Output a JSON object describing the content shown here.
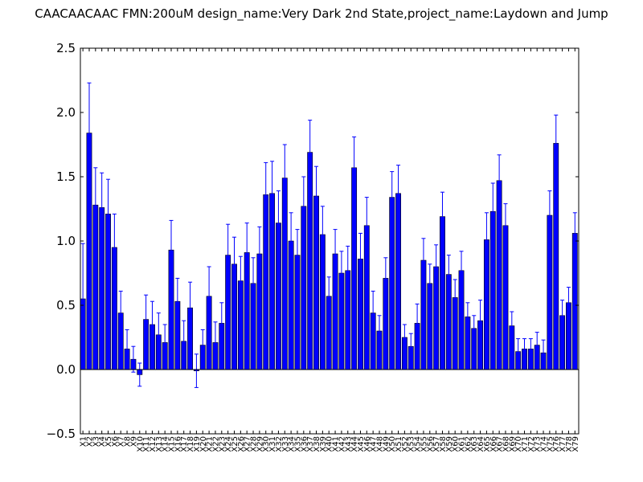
{
  "chart_data": {
    "type": "bar",
    "title": "CAACAACAAC  FMN:200uM  design_name:Very Dark 2nd State,project_name:Laydown and Jump",
    "xlabel": "",
    "ylabel": "",
    "ylim": [
      -0.5,
      2.5
    ],
    "yticks": [
      -0.5,
      0.0,
      0.5,
      1.0,
      1.5,
      2.0,
      2.5
    ],
    "ytick_labels": [
      "−0.5",
      "0.0",
      "0.5",
      "1.0",
      "1.5",
      "2.0",
      "2.5"
    ],
    "grid": false,
    "bar_color": "#0000ff",
    "error_color": "#0000ff",
    "categories": [
      "X1",
      "X2",
      "X3",
      "X4",
      "X5",
      "X6",
      "X7",
      "X8",
      "X9",
      "X10",
      "X11",
      "X12",
      "X13",
      "X14",
      "X15",
      "X16",
      "X17",
      "X18",
      "X19",
      "X20",
      "X21",
      "X22",
      "X23",
      "X24",
      "X25",
      "X26",
      "X27",
      "X28",
      "X29",
      "X30",
      "X31",
      "X32",
      "X33",
      "X34",
      "X35",
      "X36",
      "X37",
      "X38",
      "X39",
      "X40",
      "X41",
      "X42",
      "X43",
      "X44",
      "X45",
      "X46",
      "X47",
      "X48",
      "X49",
      "X50",
      "X51",
      "X52",
      "X53",
      "X54",
      "X55",
      "X56",
      "X57",
      "X58",
      "X59",
      "X60",
      "X61",
      "X62",
      "X63",
      "X64",
      "X65",
      "X66",
      "X67",
      "X68",
      "X69",
      "X70",
      "X71",
      "X72",
      "X73",
      "X74",
      "X75",
      "X76",
      "X77",
      "X78",
      "X79"
    ],
    "values": [
      0.55,
      1.84,
      1.28,
      1.26,
      1.21,
      0.95,
      0.44,
      0.16,
      0.08,
      -0.04,
      0.39,
      0.35,
      0.27,
      0.21,
      0.93,
      0.53,
      0.22,
      0.48,
      -0.01,
      0.19,
      0.57,
      0.21,
      0.36,
      0.89,
      0.82,
      0.69,
      0.91,
      0.67,
      0.9,
      1.36,
      1.37,
      1.14,
      1.49,
      1.0,
      0.89,
      1.27,
      1.69,
      1.35,
      1.05,
      0.57,
      0.9,
      0.75,
      0.77,
      1.57,
      0.86,
      1.12,
      0.44,
      0.3,
      0.71,
      1.34,
      1.37,
      0.25,
      0.18,
      0.36,
      0.85,
      0.67,
      0.8,
      1.19,
      0.74,
      0.56,
      0.77,
      0.41,
      0.32,
      0.38,
      1.01,
      1.23,
      1.47,
      1.12,
      0.34,
      0.14,
      0.16,
      0.16,
      0.19,
      0.13,
      1.2,
      1.76,
      0.42,
      0.52,
      1.06
    ],
    "errors": [
      0.43,
      0.39,
      0.29,
      0.27,
      0.27,
      0.26,
      0.17,
      0.15,
      0.1,
      0.09,
      0.19,
      0.18,
      0.17,
      0.14,
      0.23,
      0.18,
      0.16,
      0.2,
      0.13,
      0.12,
      0.23,
      0.16,
      0.16,
      0.24,
      0.21,
      0.19,
      0.23,
      0.2,
      0.21,
      0.25,
      0.25,
      0.25,
      0.26,
      0.22,
      0.2,
      0.23,
      0.25,
      0.23,
      0.22,
      0.15,
      0.19,
      0.17,
      0.19,
      0.24,
      0.2,
      0.22,
      0.17,
      0.12,
      0.16,
      0.2,
      0.22,
      0.1,
      0.1,
      0.15,
      0.17,
      0.15,
      0.17,
      0.19,
      0.15,
      0.14,
      0.15,
      0.11,
      0.1,
      0.16,
      0.21,
      0.22,
      0.2,
      0.17,
      0.11,
      0.1,
      0.08,
      0.08,
      0.1,
      0.1,
      0.19,
      0.22,
      0.12,
      0.12,
      0.16
    ]
  }
}
